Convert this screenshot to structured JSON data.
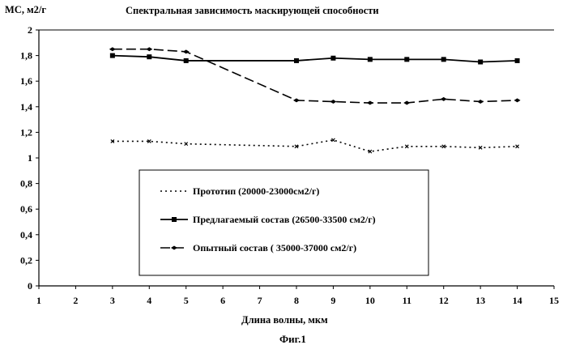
{
  "figure_label": "Фиг.1",
  "chart_data": {
    "type": "line",
    "title": "Спектральная зависимость маскирующей способности",
    "ylabel": "МС, м2/г",
    "xlabel": "Длина волны, мкм",
    "xlim": [
      1,
      15
    ],
    "ylim": [
      0,
      2
    ],
    "x_ticks": [
      "1",
      "2",
      "3",
      "4",
      "5",
      "6",
      "7",
      "8",
      "9",
      "10",
      "11",
      "12",
      "13",
      "14",
      "15"
    ],
    "y_ticks": [
      "0",
      "0,2",
      "0,4",
      "0,6",
      "0,8",
      "1",
      "1,2",
      "1,4",
      "1,6",
      "1,8",
      "2"
    ],
    "grid": "horizontal-top-only",
    "legend_position": "lower-center",
    "series": [
      {
        "name": "Прототип (20000-23000см2/г)",
        "style": "dotted",
        "x": [
          3,
          4,
          5,
          8,
          9,
          10,
          11,
          12,
          13,
          14
        ],
        "y": [
          1.13,
          1.13,
          1.11,
          1.09,
          1.14,
          1.05,
          1.09,
          1.09,
          1.08,
          1.09
        ]
      },
      {
        "name": "Предлагаемый состав (26500-33500 см2/г)",
        "style": "solid-square",
        "x": [
          3,
          4,
          5,
          8,
          9,
          10,
          11,
          12,
          13,
          14
        ],
        "y": [
          1.8,
          1.79,
          1.76,
          1.76,
          1.78,
          1.77,
          1.77,
          1.77,
          1.75,
          1.76
        ]
      },
      {
        "name": "Опытный  состав ( 35000-37000 см2/г)",
        "style": "dashed-diamond",
        "x": [
          3,
          4,
          5,
          8,
          9,
          10,
          11,
          12,
          13,
          14
        ],
        "y": [
          1.85,
          1.85,
          1.83,
          1.45,
          1.44,
          1.43,
          1.43,
          1.46,
          1.44,
          1.45
        ]
      }
    ]
  }
}
